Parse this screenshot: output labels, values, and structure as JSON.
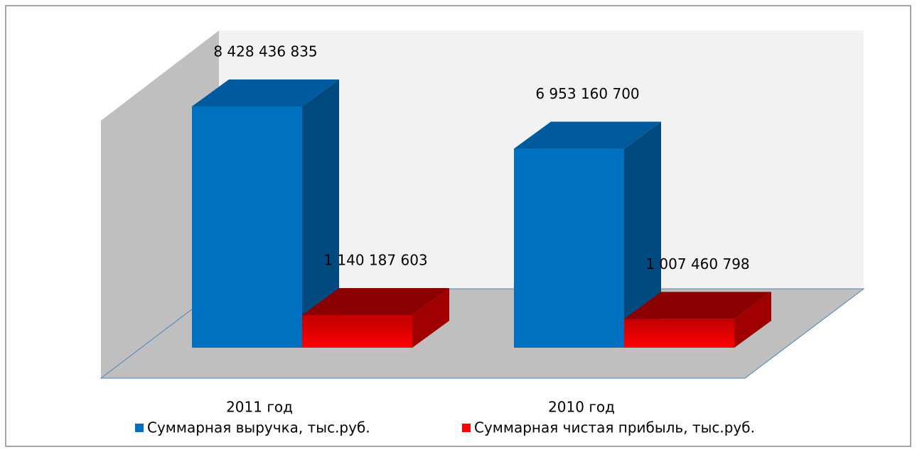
{
  "chart_data": {
    "type": "bar3d",
    "categories": [
      "2011 год",
      "2010 год"
    ],
    "series": [
      {
        "name": "Суммарная выручка, тыс.руб.",
        "color": "#0070c0",
        "values": [
          8428436835,
          6953160700
        ],
        "value_labels": [
          "8 428 436 835",
          "6 953 160 700"
        ]
      },
      {
        "name": "Суммарная чистая прибыль, тыс.руб.",
        "color": "#ff0000",
        "values": [
          1140187603,
          1007460798
        ],
        "value_labels": [
          "1 140 187 603",
          "1 007 460 798"
        ]
      }
    ],
    "legend": "bottom"
  }
}
